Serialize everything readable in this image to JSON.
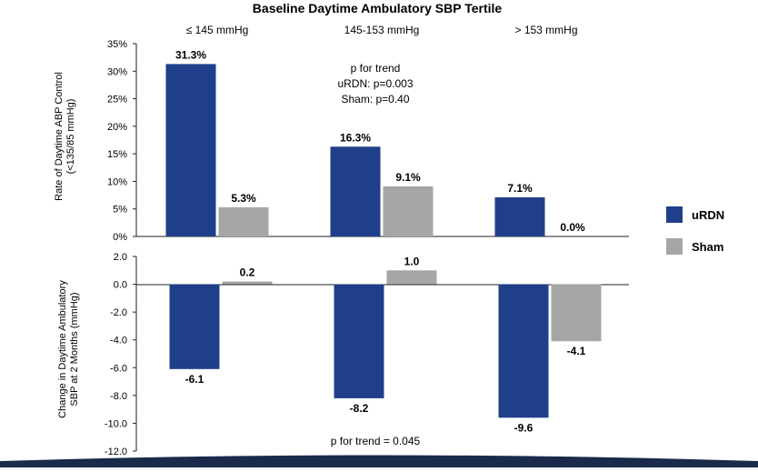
{
  "colors": {
    "urdn": "#1f3f8a",
    "sham": "#a6a6a6",
    "axis": "#222222",
    "footer": "#1a2a4a"
  },
  "chart_data": [
    {
      "type": "bar",
      "title": "Baseline Daytime Ambulatory SBP Tertile",
      "categories": [
        "≤ 145 mmHg",
        "145-153 mmHg",
        "> 153 mmHg"
      ],
      "ylabel": [
        "Rate of Daytime ABP Control",
        "(<135/85 mmHg)"
      ],
      "ylim": [
        0,
        35
      ],
      "yticks": [
        "0%",
        "5%",
        "10%",
        "15%",
        "20%",
        "25%",
        "30%",
        "35%"
      ],
      "series": [
        {
          "name": "uRDN",
          "values": [
            31.3,
            16.3,
            7.1
          ],
          "labels": [
            "31.3%",
            "16.3%",
            "7.1%"
          ]
        },
        {
          "name": "Sham",
          "values": [
            5.3,
            9.1,
            0.0
          ],
          "labels": [
            "5.3%",
            "9.1%",
            "0.0%"
          ]
        }
      ],
      "annotation": [
        "p for trend",
        "uRDN: p=0.003",
        "Sham: p=0.40"
      ],
      "legend": [
        "uRDN",
        "Sham"
      ]
    },
    {
      "type": "bar",
      "ylabel": [
        "Change in Daytime Ambulatory",
        "SBP at 2 Months (mmHg)"
      ],
      "ylim": [
        -12,
        2
      ],
      "yticks": [
        "2.0",
        "0.0",
        "-2.0",
        "-4.0",
        "-6.0",
        "-8.0",
        "-10.0",
        "-12.0"
      ],
      "series": [
        {
          "name": "uRDN",
          "values": [
            -6.1,
            -8.2,
            -9.6
          ],
          "labels": [
            "-6.1",
            "-8.2",
            "-9.6"
          ]
        },
        {
          "name": "Sham",
          "values": [
            0.2,
            1.0,
            -4.1
          ],
          "labels": [
            "0.2",
            "1.0",
            "-4.1"
          ]
        }
      ],
      "annotation": [
        "p for trend = 0.045"
      ]
    }
  ]
}
